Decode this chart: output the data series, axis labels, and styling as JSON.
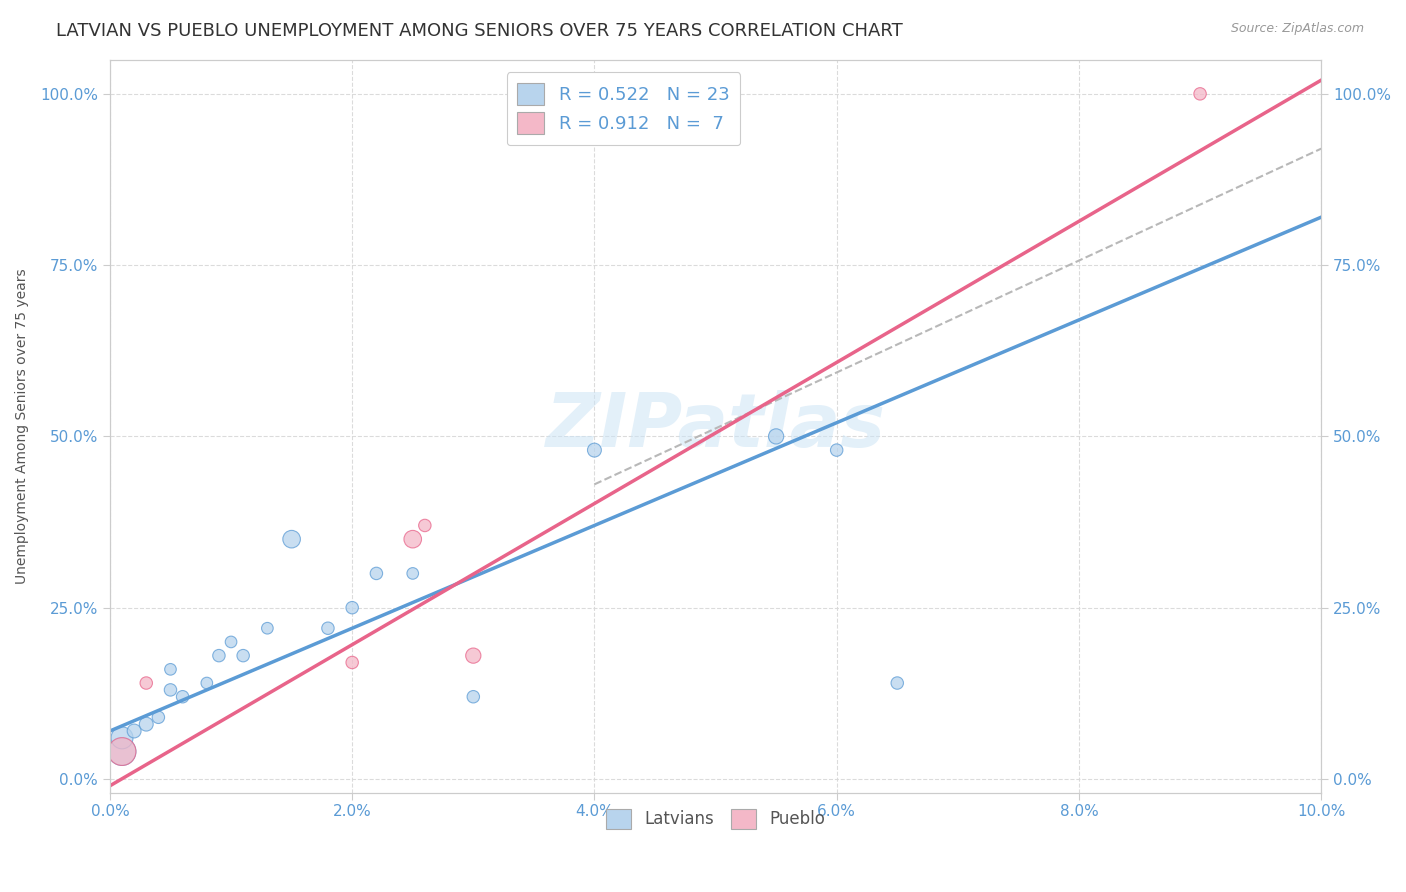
{
  "title": "LATVIAN VS PUEBLO UNEMPLOYMENT AMONG SENIORS OVER 75 YEARS CORRELATION CHART",
  "source": "Source: ZipAtlas.com",
  "ylabel": "Unemployment Among Seniors over 75 years",
  "xlim": [
    0.0,
    0.1
  ],
  "ylim": [
    -0.02,
    1.05
  ],
  "xticks": [
    0.0,
    0.02,
    0.04,
    0.06,
    0.08,
    0.1
  ],
  "xticklabels": [
    "0.0%",
    "2.0%",
    "4.0%",
    "6.0%",
    "8.0%",
    "10.0%"
  ],
  "yticks": [
    0.0,
    0.25,
    0.5,
    0.75,
    1.0
  ],
  "yticklabels": [
    "0.0%",
    "25.0%",
    "50.0%",
    "75.0%",
    "100.0%"
  ],
  "latvian_R": 0.522,
  "latvian_N": 23,
  "pueblo_R": 0.912,
  "pueblo_N": 7,
  "latvian_color": "#b8d4ed",
  "latvian_line_color": "#5b9bd5",
  "pueblo_color": "#f4b8c8",
  "pueblo_line_color": "#e8648a",
  "ref_line_color": "#b8b8b8",
  "watermark": "ZIPatlas",
  "background_color": "#ffffff",
  "title_fontsize": 13,
  "axis_label_fontsize": 10,
  "tick_fontsize": 11,
  "latvians_x": [
    0.001,
    0.001,
    0.002,
    0.003,
    0.004,
    0.005,
    0.005,
    0.006,
    0.008,
    0.009,
    0.01,
    0.011,
    0.013,
    0.015,
    0.018,
    0.02,
    0.022,
    0.025,
    0.03,
    0.04,
    0.055,
    0.06,
    0.065
  ],
  "latvians_y": [
    0.04,
    0.06,
    0.07,
    0.08,
    0.09,
    0.13,
    0.16,
    0.12,
    0.14,
    0.18,
    0.2,
    0.18,
    0.22,
    0.35,
    0.22,
    0.25,
    0.3,
    0.3,
    0.12,
    0.48,
    0.5,
    0.48,
    0.14
  ],
  "latvians_size": [
    400,
    250,
    100,
    100,
    80,
    80,
    70,
    80,
    70,
    80,
    70,
    80,
    70,
    160,
    80,
    80,
    80,
    70,
    80,
    100,
    120,
    80,
    80
  ],
  "pueblo_x": [
    0.001,
    0.003,
    0.02,
    0.025,
    0.026,
    0.03,
    0.09
  ],
  "pueblo_y": [
    0.04,
    0.14,
    0.17,
    0.35,
    0.37,
    0.18,
    1.0
  ],
  "pueblo_size": [
    400,
    80,
    80,
    160,
    80,
    120,
    80
  ],
  "latvian_line_x0": 0.0,
  "latvian_line_y0": 0.07,
  "latvian_line_x1": 0.1,
  "latvian_line_y1": 0.82,
  "pueblo_line_x0": 0.0,
  "pueblo_line_y0": -0.01,
  "pueblo_line_x1": 0.1,
  "pueblo_line_y1": 1.02,
  "ref_line_x0": 0.04,
  "ref_line_y0": 0.43,
  "ref_line_x1": 0.1,
  "ref_line_y1": 0.92
}
